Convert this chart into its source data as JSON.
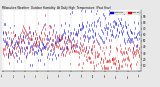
{
  "title": "Milwaukee Weather Outdoor Humidity  At Daily High  Temperature  (Past Year)",
  "legend_blue": "Humidity",
  "legend_red": "Dew Pt",
  "background_color": "#e8e8e8",
  "plot_bg": "#ffffff",
  "ylim": [
    0,
    100
  ],
  "n_points": 365,
  "seed": 42,
  "blue_color": "#0000dd",
  "red_color": "#dd0000",
  "grid_color": "#999999",
  "n_gridlines": 13,
  "ytick_values": [
    10,
    20,
    30,
    40,
    50,
    60,
    70,
    80,
    90
  ],
  "humidity_base": 55,
  "humidity_amp": 15,
  "humidity_noise": 15,
  "dewpoint_base": 38,
  "dewpoint_amp": 18,
  "dewpoint_noise": 12,
  "spike_idx": 185,
  "spike_val": 98
}
